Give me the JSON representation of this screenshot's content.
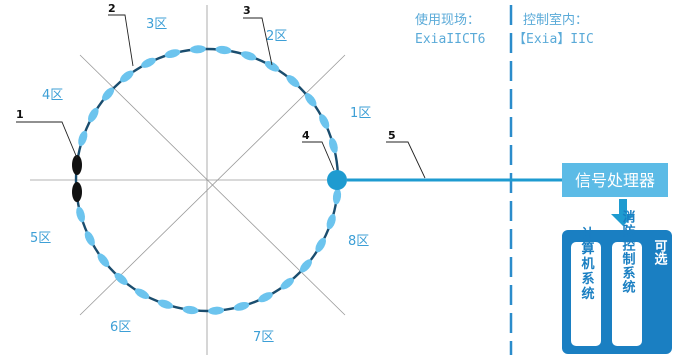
{
  "headers": {
    "site_title": "使用现场：",
    "site_rating": "ExiaIICT6",
    "room_title": "控制室内：",
    "room_rating": "【Exia】IIC"
  },
  "zones": [
    "1区",
    "2区",
    "3区",
    "4区",
    "5区",
    "6区",
    "7区",
    "8区"
  ],
  "callouts": [
    "1",
    "2",
    "3",
    "4",
    "5"
  ],
  "processor": {
    "label": "信号处理器"
  },
  "outputs": {
    "optional_label": "可选",
    "computer_system": "计算机系统",
    "fire_control_system": "消防控制系统"
  },
  "colors": {
    "accent": "#1e9bd0",
    "segment": "#6cc4ee",
    "ring": "#1a4d6e",
    "processor": "#5cbbe6",
    "output_box": "#1a7fc2",
    "zone_text": "#3d9fd6",
    "divider": "#2b8ccb"
  }
}
